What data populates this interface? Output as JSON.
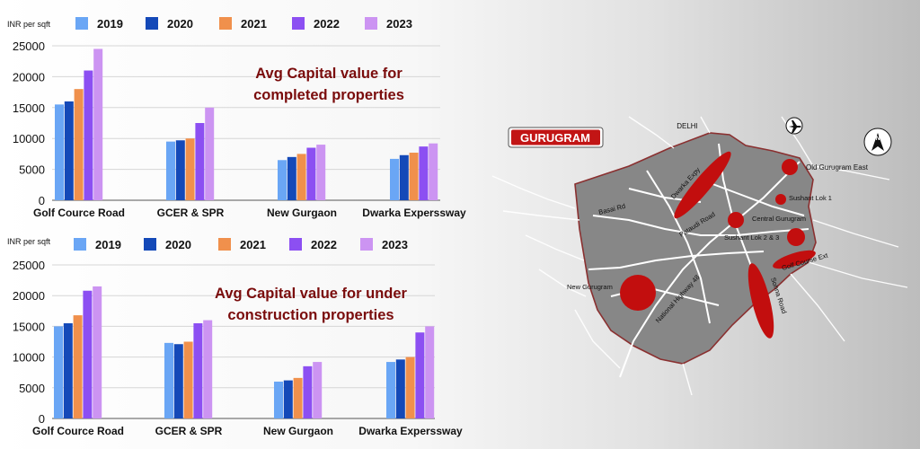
{
  "colors": {
    "2019": "#6aa6f5",
    "2020": "#1449b8",
    "2021": "#f0904c",
    "2022": "#8c4ff2",
    "2023": "#cc94f2",
    "title": "#7a0c0c",
    "hotspot": "#c20e0e"
  },
  "chart_data": [
    {
      "type": "bar",
      "title": "Avg Capital value for completed properties",
      "title_lines": [
        "Avg Capital value for",
        "completed properties"
      ],
      "ylabel": "INR per sqft",
      "ylim": [
        0,
        25000
      ],
      "yticks": [
        "0",
        "5000",
        "10000",
        "15000",
        "20000",
        "25000"
      ],
      "categories": [
        "Golf Cource Road",
        "GCER & SPR",
        "New Gurgaon",
        "Dwarka Experssway"
      ],
      "legend": "top",
      "grid": true,
      "series": [
        {
          "name": "2019",
          "values": [
            15500,
            9500,
            6500,
            6700
          ]
        },
        {
          "name": "2020",
          "values": [
            16000,
            9700,
            7000,
            7300
          ]
        },
        {
          "name": "2021",
          "values": [
            18000,
            10000,
            7500,
            7700
          ]
        },
        {
          "name": "2022",
          "values": [
            21000,
            12500,
            8500,
            8700
          ]
        },
        {
          "name": "2023",
          "values": [
            24500,
            15000,
            9000,
            9200
          ]
        }
      ]
    },
    {
      "type": "bar",
      "title": "Avg Capital value for under construction properties",
      "title_lines": [
        "Avg Capital value for under",
        "construction properties"
      ],
      "ylabel": "INR per sqft",
      "ylim": [
        0,
        25000
      ],
      "yticks": [
        "0",
        "5000",
        "10000",
        "15000",
        "20000",
        "25000"
      ],
      "categories": [
        "Golf Cource Road",
        "GCER & SPR",
        "New Gurgaon",
        "Dwarka Experssway"
      ],
      "legend": "top",
      "grid": true,
      "series": [
        {
          "name": "2019",
          "values": [
            15000,
            12300,
            6000,
            9200
          ]
        },
        {
          "name": "2020",
          "values": [
            15500,
            12100,
            6200,
            9600
          ]
        },
        {
          "name": "2021",
          "values": [
            16800,
            12500,
            6600,
            10000
          ]
        },
        {
          "name": "2022",
          "values": [
            20800,
            15500,
            8500,
            14000
          ]
        },
        {
          "name": "2023",
          "values": [
            21500,
            16000,
            9200,
            15000
          ]
        }
      ]
    }
  ],
  "map": {
    "badge": "GURUGRAM",
    "compass": "N",
    "icons": [
      "airplane-icon",
      "north-arrow-icon"
    ],
    "labels": {
      "delhi": "DELHI",
      "old_gurugram_east": "Old Gurugram East",
      "sushant_lok_1": "Sushant Lok 1",
      "central_gurugram": "Central Gurugram",
      "sushant_lok_23": "Sushant Lok 2 & 3",
      "golf_course_ext": "Golf Course Ext",
      "basai_rd": "Basai Rd",
      "dwarka_expy": "Dwarka Expy",
      "pataudi_road": "Pataudi Road",
      "new_gurugram": "New Gurugram",
      "national_highway_48": "National Highway 48",
      "sohna_road": "Sohna Road"
    }
  }
}
